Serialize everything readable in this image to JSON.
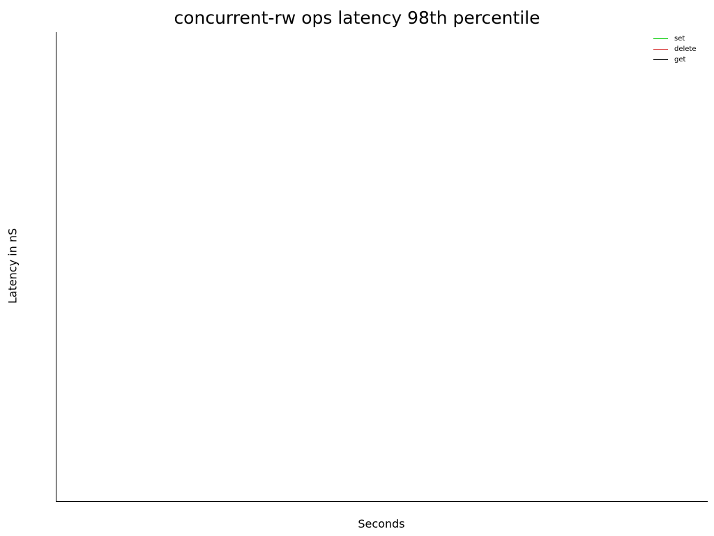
{
  "chart_data": {
    "type": "line",
    "title": "concurrent-rw ops latency 98th percentile",
    "xlabel": "Seconds",
    "ylabel": "Latency in nS",
    "legend_position": "top-right",
    "grid": false,
    "series": [
      {
        "name": "set",
        "color": "#00cc00",
        "x": [],
        "y": []
      },
      {
        "name": "delete",
        "color": "#cc0000",
        "x": [],
        "y": []
      },
      {
        "name": "get",
        "color": "#000000",
        "x": [],
        "y": []
      }
    ]
  }
}
